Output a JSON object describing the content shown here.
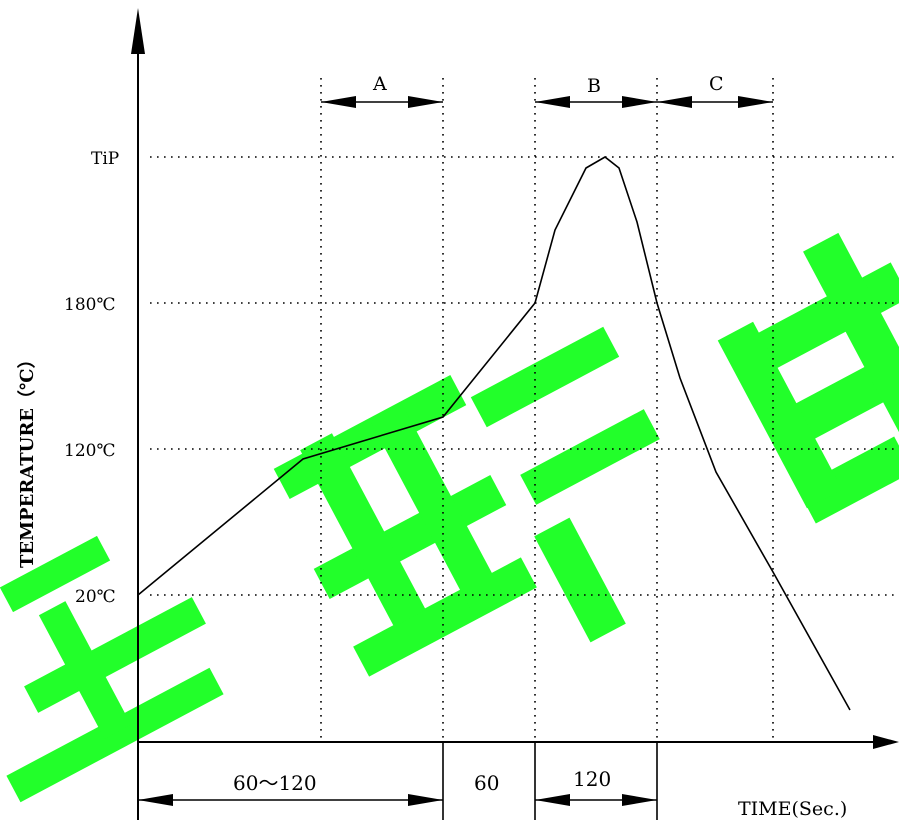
{
  "watermark": {
    "text": "美韓百",
    "color": "#22ff2a"
  },
  "chart_data": {
    "type": "line",
    "title": "",
    "ylabel": "TEMPERATURE（℃）",
    "xlabel": "TIME(Sec.)",
    "y_ticks": [
      {
        "key": "20",
        "label": "20℃"
      },
      {
        "key": "120",
        "label": "120℃"
      },
      {
        "key": "180",
        "label": "180℃"
      },
      {
        "key": "tip",
        "label": "TiP"
      }
    ],
    "zones": [
      {
        "label": "A",
        "start": "t1",
        "end": "t2"
      },
      {
        "label": "B",
        "start": "t2b",
        "end": "t3"
      },
      {
        "label": "C",
        "start": "t3",
        "end": "t4"
      }
    ],
    "durations": [
      {
        "label": "60～120",
        "seconds_range": [
          60,
          120
        ],
        "start": "t0",
        "end": "t2"
      },
      {
        "label": "60",
        "seconds": 60,
        "start": "t2",
        "end": "t2b"
      },
      {
        "label": "120",
        "seconds": 120,
        "start": "t2b",
        "end": "t3"
      }
    ],
    "profile_note": "Profile rises from 20℃ to 120℃ through zone A, to 180℃ by end of 60 s segment, peaks at TiP in zone B, then falls through zone C.",
    "grid": "dotted"
  }
}
